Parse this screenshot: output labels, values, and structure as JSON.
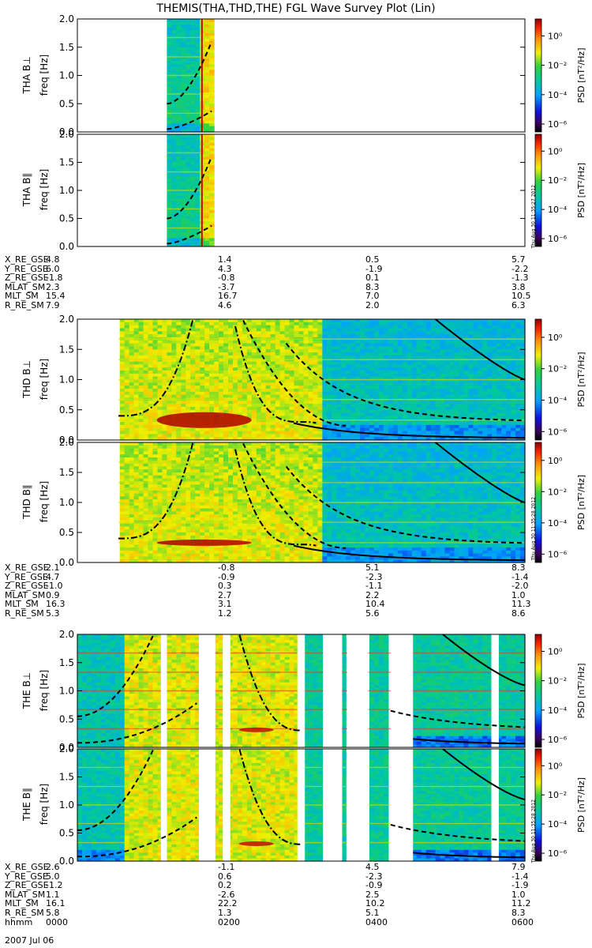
{
  "title": "THEMIS(THA,THD,THE) FGL Wave Survey Plot (Lin)",
  "colorbar": {
    "label": "PSD [nT²/Hz]",
    "ticks": [
      "10⁰",
      "10⁻²",
      "10⁻⁴",
      "10⁻⁶"
    ]
  },
  "stamps": [
    "Thu Aug 30 11:35:27 2012",
    "Thu Aug 30 11:35:28 2012",
    "Thu Aug 30 11:35:28 2012"
  ],
  "panels": [
    {
      "label": "THA B⊥",
      "ylabel": "freq [Hz]"
    },
    {
      "label": "THA B∥",
      "ylabel": "freq [Hz]"
    },
    {
      "label": "THD B⊥",
      "ylabel": "freq [Hz]"
    },
    {
      "label": "THD B∥",
      "ylabel": "freq [Hz]"
    },
    {
      "label": "THE B⊥",
      "ylabel": "freq [Hz]"
    },
    {
      "label": "THE B∥",
      "ylabel": "freq [Hz]"
    }
  ],
  "ephemeris": [
    {
      "rows": [
        [
          "X_RE_GSE",
          "4.8",
          "1.4",
          "0.5",
          "5.7"
        ],
        [
          "Y_RE_GSE",
          "6.0",
          "4.3",
          "-1.9",
          "-2.2"
        ],
        [
          "Z_RE_GSE",
          "-1.8",
          "-0.8",
          "0.1",
          "-1.3"
        ],
        [
          "MLAT_SM",
          "2.3",
          "-3.7",
          "8.3",
          "3.8"
        ],
        [
          "MLT_SM",
          "15.4",
          "16.7",
          "7.0",
          "10.5"
        ],
        [
          "R_RE_SM",
          "7.9",
          "4.6",
          "2.0",
          "6.3"
        ]
      ]
    },
    {
      "rows": [
        [
          "X_RE_GSE",
          "2.1",
          "-0.8",
          "5.1",
          "8.3"
        ],
        [
          "Y_RE_GSE",
          "4.7",
          "-0.9",
          "-2.3",
          "-1.4"
        ],
        [
          "Z_RE_GSE",
          "-1.0",
          "0.3",
          "-1.1",
          "-2.0"
        ],
        [
          "MLAT_SM",
          "0.9",
          "2.7",
          "2.2",
          "1.0"
        ],
        [
          "MLT_SM",
          "16.3",
          "3.1",
          "10.4",
          "11.3"
        ],
        [
          "R_RE_SM",
          "5.3",
          "1.2",
          "5.6",
          "8.6"
        ]
      ]
    },
    {
      "rows": [
        [
          "X_RE_GSE",
          "2.6",
          "-1.1",
          "4.5",
          "7.9"
        ],
        [
          "Y_RE_GSE",
          "5.0",
          "0.6",
          "-2.3",
          "-1.4"
        ],
        [
          "Z_RE_GSE",
          "-1.2",
          "0.2",
          "-0.9",
          "-1.9"
        ],
        [
          "MLAT_SM",
          "1.1",
          "-2.6",
          "2.5",
          "1.0"
        ],
        [
          "MLT_SM",
          "16.1",
          "22.2",
          "10.2",
          "11.2"
        ],
        [
          "R_RE_SM",
          "5.8",
          "1.3",
          "5.1",
          "8.3"
        ],
        [
          "hhmm",
          "0000",
          "0200",
          "0400",
          "0600"
        ]
      ]
    }
  ],
  "date": "2007 Jul 06",
  "chart_data": {
    "type": "heatmap",
    "title": "THEMIS(THA,THD,THE) FGL Wave Survey Plot (Lin)",
    "xlabel": "hhmm",
    "x_ticks": [
      "0000",
      "0200",
      "0400",
      "0600"
    ],
    "xlim_hours": [
      0,
      6
    ],
    "ylabel": "freq [Hz]",
    "ylim": [
      0,
      2.0
    ],
    "y_ticks": [
      0.0,
      0.5,
      1.0,
      1.5,
      2.0
    ],
    "colorbar_range_log10": [
      -6.5,
      1.5
    ],
    "series": [
      {
        "name": "THA",
        "coverage_hours": [
          [
            1.2,
            1.8
          ]
        ],
        "gaps_hours": [],
        "spike_hour": 1.67
      },
      {
        "name": "THD",
        "coverage_hours": [
          [
            0.55,
            6.0
          ]
        ],
        "gaps_hours": [],
        "level_change_hour": 3.3
      },
      {
        "name": "THE",
        "coverage_hours": [
          [
            0.0,
            6.0
          ]
        ],
        "gaps_hours": [
          [
            1.12,
            1.2
          ],
          [
            1.63,
            1.85
          ],
          [
            1.95,
            2.05
          ],
          [
            2.95,
            3.05
          ],
          [
            3.3,
            3.55
          ],
          [
            3.62,
            3.9
          ],
          [
            4.2,
            4.5
          ],
          [
            5.55,
            5.65
          ]
        ]
      }
    ]
  }
}
